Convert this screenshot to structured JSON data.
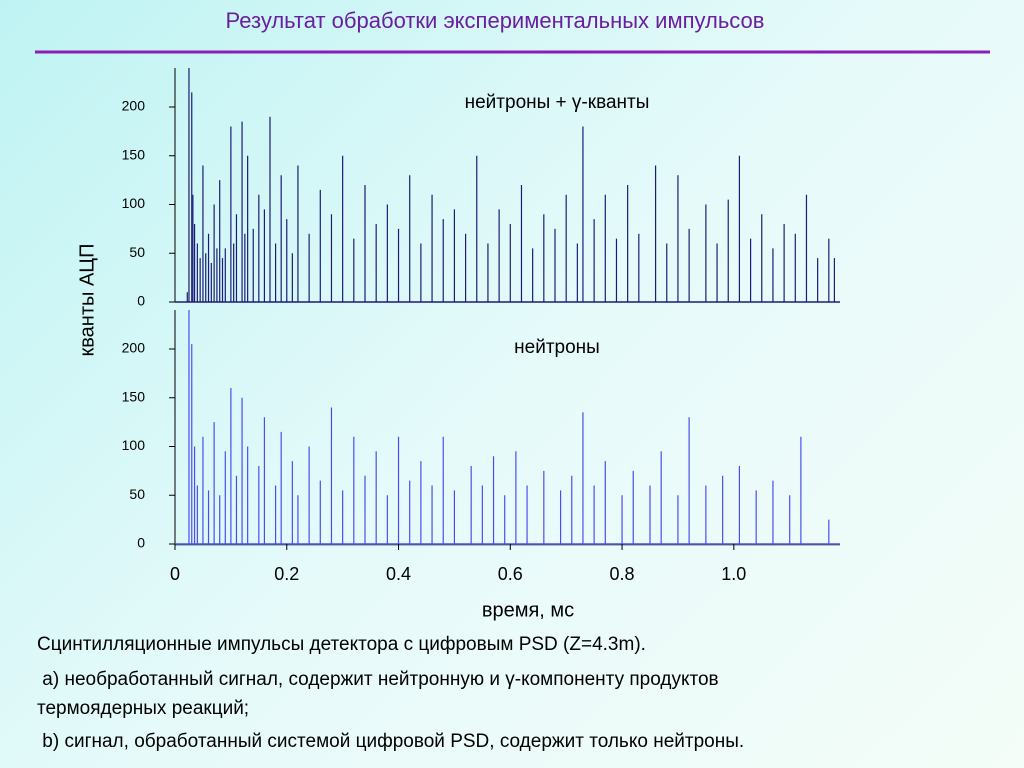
{
  "title": "Результат обработки экспериментальных импульсов",
  "caption": [
    "Сцинтилляционные импульсы детектора с цифровым PSD (Z=4.3m).",
    " a) необработанный сигнал, содержит нейтронную и γ-компоненту продуктов",
    "термоядерных реакций;",
    " b) сигнал, обработанный системой цифровой PSD, содержит только нейтроны."
  ],
  "chart_data": [
    {
      "type": "spike",
      "annotation": "нейтроны + γ-кванты",
      "ylabel": "кванты АЦП",
      "color": "#1c1c78",
      "xlim": [
        0,
        1.19
      ],
      "ylim": [
        0,
        240
      ],
      "yticks": [
        0,
        50,
        100,
        150,
        200
      ],
      "x": [
        0.022,
        0.025,
        0.03,
        0.032,
        0.035,
        0.04,
        0.045,
        0.05,
        0.055,
        0.06,
        0.065,
        0.07,
        0.075,
        0.08,
        0.085,
        0.09,
        0.1,
        0.105,
        0.11,
        0.12,
        0.125,
        0.13,
        0.14,
        0.15,
        0.16,
        0.17,
        0.18,
        0.19,
        0.2,
        0.21,
        0.22,
        0.24,
        0.26,
        0.28,
        0.3,
        0.32,
        0.34,
        0.36,
        0.38,
        0.4,
        0.42,
        0.44,
        0.46,
        0.48,
        0.5,
        0.52,
        0.54,
        0.56,
        0.58,
        0.6,
        0.62,
        0.64,
        0.66,
        0.68,
        0.7,
        0.72,
        0.73,
        0.75,
        0.77,
        0.79,
        0.81,
        0.83,
        0.86,
        0.88,
        0.9,
        0.92,
        0.95,
        0.97,
        0.99,
        1.01,
        1.03,
        1.05,
        1.07,
        1.09,
        1.11,
        1.13,
        1.15,
        1.17,
        1.18
      ],
      "values": [
        10,
        240,
        215,
        110,
        80,
        60,
        45,
        140,
        50,
        70,
        40,
        100,
        55,
        125,
        45,
        55,
        180,
        60,
        90,
        185,
        70,
        150,
        75,
        110,
        95,
        190,
        60,
        130,
        85,
        50,
        140,
        70,
        115,
        90,
        150,
        65,
        120,
        80,
        100,
        75,
        130,
        60,
        110,
        85,
        95,
        70,
        150,
        60,
        95,
        80,
        120,
        55,
        90,
        75,
        110,
        60,
        180,
        85,
        110,
        65,
        120,
        70,
        140,
        60,
        130,
        75,
        100,
        60,
        105,
        150,
        65,
        90,
        55,
        80,
        70,
        110,
        45,
        65,
        45
      ]
    },
    {
      "type": "spike",
      "annotation": "нейтроны",
      "xlabel": "время, мс",
      "color": "#4a4ef0",
      "xlim": [
        0,
        1.19
      ],
      "ylim": [
        0,
        240
      ],
      "yticks": [
        0,
        50,
        100,
        150,
        200
      ],
      "xticks": [
        0,
        0.2,
        0.4,
        0.6,
        0.8,
        {
          "value": 1,
          "label": "1.0"
        }
      ],
      "x": [
        0.025,
        0.03,
        0.035,
        0.04,
        0.05,
        0.06,
        0.07,
        0.08,
        0.09,
        0.1,
        0.11,
        0.12,
        0.13,
        0.15,
        0.16,
        0.18,
        0.19,
        0.21,
        0.22,
        0.24,
        0.26,
        0.28,
        0.3,
        0.32,
        0.34,
        0.36,
        0.38,
        0.4,
        0.42,
        0.44,
        0.46,
        0.48,
        0.5,
        0.53,
        0.55,
        0.57,
        0.59,
        0.61,
        0.63,
        0.66,
        0.69,
        0.71,
        0.73,
        0.75,
        0.77,
        0.8,
        0.82,
        0.85,
        0.87,
        0.9,
        0.92,
        0.95,
        0.98,
        1.01,
        1.04,
        1.07,
        1.1,
        1.12,
        1.17
      ],
      "values": [
        240,
        205,
        100,
        60,
        110,
        55,
        125,
        50,
        95,
        160,
        70,
        150,
        100,
        80,
        130,
        60,
        115,
        85,
        50,
        100,
        65,
        140,
        55,
        110,
        70,
        95,
        50,
        110,
        65,
        85,
        60,
        110,
        55,
        80,
        60,
        90,
        50,
        95,
        60,
        75,
        55,
        70,
        135,
        60,
        85,
        50,
        75,
        60,
        95,
        50,
        130,
        60,
        70,
        80,
        55,
        65,
        50,
        110,
        25
      ]
    }
  ]
}
